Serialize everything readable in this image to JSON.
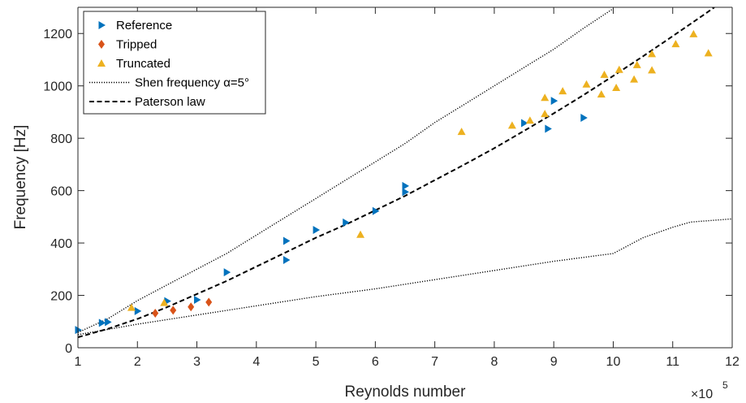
{
  "chart_data": {
    "type": "scatter",
    "xlabel": "Reynolds number",
    "ylabel": "Frequency [Hz]",
    "x_multiplier": {
      "base": "×10",
      "exponent": "5"
    },
    "xlim": [
      100000,
      1200000
    ],
    "ylim": [
      0,
      1300
    ],
    "xticks": [
      100000,
      200000,
      300000,
      400000,
      500000,
      600000,
      700000,
      800000,
      900000,
      1000000,
      1100000,
      1200000
    ],
    "xtick_labels": [
      "1",
      "2",
      "3",
      "4",
      "5",
      "6",
      "7",
      "8",
      "9",
      "10",
      "11",
      "12"
    ],
    "yticks": [
      0,
      200,
      400,
      600,
      800,
      1000,
      1200
    ],
    "ytick_labels": [
      "0",
      "200",
      "400",
      "600",
      "800",
      "1000",
      "1200"
    ],
    "grid": false,
    "legend_position": "top-left",
    "series": [
      {
        "name": "Reference",
        "kind": "markers",
        "marker": "triangle-right",
        "color": "#0072BD",
        "points": [
          {
            "x": 100000,
            "y": 68
          },
          {
            "x": 140000,
            "y": 95
          },
          {
            "x": 150000,
            "y": 98
          },
          {
            "x": 200000,
            "y": 140
          },
          {
            "x": 250000,
            "y": 178
          },
          {
            "x": 300000,
            "y": 183
          },
          {
            "x": 350000,
            "y": 288
          },
          {
            "x": 450000,
            "y": 335
          },
          {
            "x": 450000,
            "y": 408
          },
          {
            "x": 500000,
            "y": 450
          },
          {
            "x": 550000,
            "y": 478
          },
          {
            "x": 600000,
            "y": 522
          },
          {
            "x": 650000,
            "y": 595
          },
          {
            "x": 650000,
            "y": 618
          },
          {
            "x": 850000,
            "y": 858
          },
          {
            "x": 890000,
            "y": 836
          },
          {
            "x": 900000,
            "y": 943
          },
          {
            "x": 950000,
            "y": 878
          }
        ]
      },
      {
        "name": "Tripped",
        "kind": "markers",
        "marker": "diamond",
        "color": "#D95319",
        "points": [
          {
            "x": 230000,
            "y": 132
          },
          {
            "x": 260000,
            "y": 143
          },
          {
            "x": 290000,
            "y": 156
          },
          {
            "x": 320000,
            "y": 174
          }
        ]
      },
      {
        "name": "Truncated",
        "kind": "markers",
        "marker": "triangle-up",
        "color": "#EDB120",
        "points": [
          {
            "x": 190000,
            "y": 153
          },
          {
            "x": 245000,
            "y": 172
          },
          {
            "x": 575000,
            "y": 432
          },
          {
            "x": 745000,
            "y": 825
          },
          {
            "x": 830000,
            "y": 849
          },
          {
            "x": 860000,
            "y": 868
          },
          {
            "x": 885000,
            "y": 893
          },
          {
            "x": 885000,
            "y": 955
          },
          {
            "x": 915000,
            "y": 980
          },
          {
            "x": 955000,
            "y": 1006
          },
          {
            "x": 980000,
            "y": 968
          },
          {
            "x": 985000,
            "y": 1043
          },
          {
            "x": 1005000,
            "y": 993
          },
          {
            "x": 1010000,
            "y": 1062
          },
          {
            "x": 1035000,
            "y": 1025
          },
          {
            "x": 1040000,
            "y": 1080
          },
          {
            "x": 1065000,
            "y": 1060
          },
          {
            "x": 1065000,
            "y": 1122
          },
          {
            "x": 1105000,
            "y": 1160
          },
          {
            "x": 1135000,
            "y": 1198
          },
          {
            "x": 1160000,
            "y": 1125
          }
        ]
      },
      {
        "name": "Shen frequency α=5°",
        "kind": "line",
        "dash": "dotted",
        "color": "#000000",
        "segments": [
          [
            {
              "x": 100000,
              "y": 58
            },
            {
              "x": 150000,
              "y": 110
            },
            {
              "x": 200000,
              "y": 180
            },
            {
              "x": 250000,
              "y": 240
            },
            {
              "x": 300000,
              "y": 300
            },
            {
              "x": 350000,
              "y": 360
            },
            {
              "x": 400000,
              "y": 430
            },
            {
              "x": 450000,
              "y": 500
            },
            {
              "x": 500000,
              "y": 570
            },
            {
              "x": 550000,
              "y": 640
            },
            {
              "x": 600000,
              "y": 710
            },
            {
              "x": 650000,
              "y": 780
            },
            {
              "x": 700000,
              "y": 860
            },
            {
              "x": 750000,
              "y": 930
            },
            {
              "x": 800000,
              "y": 1000
            },
            {
              "x": 850000,
              "y": 1070
            },
            {
              "x": 900000,
              "y": 1140
            },
            {
              "x": 950000,
              "y": 1220
            },
            {
              "x": 1000000,
              "y": 1295
            }
          ],
          [
            {
              "x": 100000,
              "y": 50
            },
            {
              "x": 200000,
              "y": 90
            },
            {
              "x": 300000,
              "y": 125
            },
            {
              "x": 400000,
              "y": 160
            },
            {
              "x": 500000,
              "y": 195
            },
            {
              "x": 600000,
              "y": 225
            },
            {
              "x": 700000,
              "y": 260
            },
            {
              "x": 800000,
              "y": 295
            },
            {
              "x": 900000,
              "y": 330
            },
            {
              "x": 1000000,
              "y": 360
            },
            {
              "x": 1050000,
              "y": 420
            },
            {
              "x": 1100000,
              "y": 460
            },
            {
              "x": 1130000,
              "y": 480
            },
            {
              "x": 1200000,
              "y": 492
            }
          ]
        ]
      },
      {
        "name": "Paterson law",
        "kind": "line",
        "dash": "dashed",
        "color": "#000000",
        "segments": [
          [
            {
              "x": 100000,
              "y": 40
            },
            {
              "x": 150000,
              "y": 72
            },
            {
              "x": 200000,
              "y": 110
            },
            {
              "x": 250000,
              "y": 155
            },
            {
              "x": 300000,
              "y": 205
            },
            {
              "x": 350000,
              "y": 255
            },
            {
              "x": 400000,
              "y": 310
            },
            {
              "x": 450000,
              "y": 365
            },
            {
              "x": 500000,
              "y": 420
            },
            {
              "x": 550000,
              "y": 470
            },
            {
              "x": 600000,
              "y": 525
            },
            {
              "x": 650000,
              "y": 580
            },
            {
              "x": 700000,
              "y": 640
            },
            {
              "x": 750000,
              "y": 700
            },
            {
              "x": 800000,
              "y": 762
            },
            {
              "x": 850000,
              "y": 828
            },
            {
              "x": 900000,
              "y": 895
            },
            {
              "x": 950000,
              "y": 965
            },
            {
              "x": 1000000,
              "y": 1038
            },
            {
              "x": 1050000,
              "y": 1113
            },
            {
              "x": 1100000,
              "y": 1190
            },
            {
              "x": 1150000,
              "y": 1268
            },
            {
              "x": 1170000,
              "y": 1300
            }
          ]
        ]
      }
    ]
  }
}
